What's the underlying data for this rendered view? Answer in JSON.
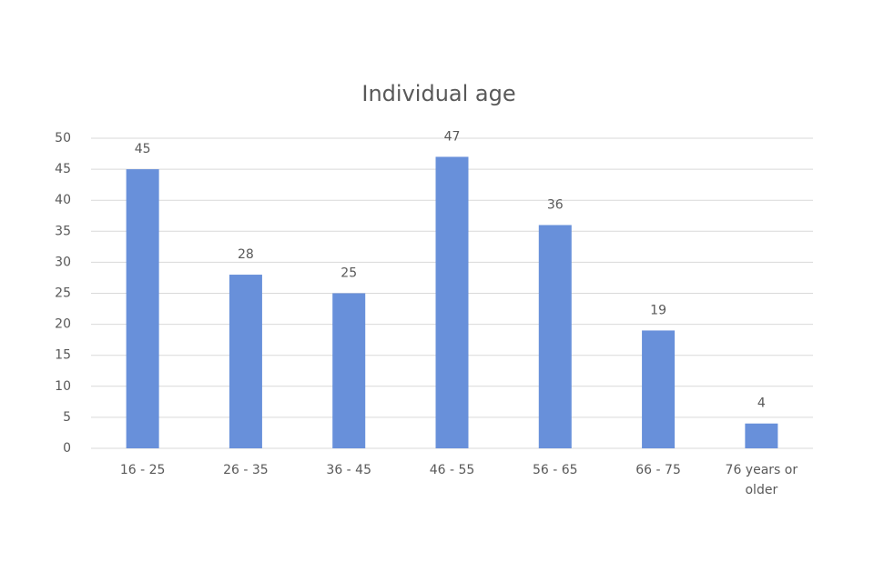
{
  "chart_data": {
    "type": "bar",
    "title": "Individual age",
    "categories": [
      "16 - 25",
      "26 - 35",
      "36 - 45",
      "46 - 55",
      "56 - 65",
      "66 - 75",
      "76 years or older"
    ],
    "values": [
      45,
      28,
      25,
      47,
      36,
      19,
      4
    ],
    "color": "#6890da",
    "ylim": [
      0,
      50
    ],
    "yticks": [
      0,
      5,
      10,
      15,
      20,
      25,
      30,
      35,
      40,
      45,
      50
    ],
    "grid": true
  }
}
